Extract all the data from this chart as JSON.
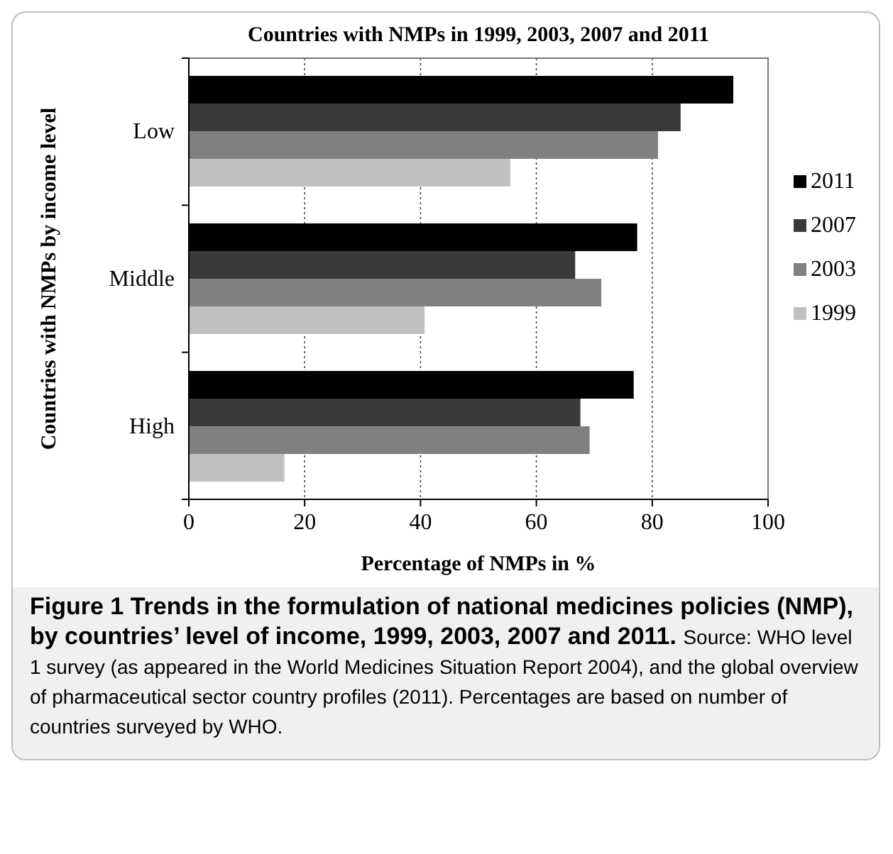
{
  "chart_data": {
    "type": "bar",
    "orientation": "horizontal",
    "title": "Countries with NMPs in 1999, 2003, 2007 and 2011",
    "xlabel": "Percentage of NMPs in %",
    "ylabel": "Countries with NMPs by income level",
    "categories": [
      "Low",
      "Middle",
      "High"
    ],
    "series": [
      {
        "name": "2011",
        "color": "#000000",
        "values": [
          94,
          77.4,
          76.8
        ]
      },
      {
        "name": "2007",
        "color": "#3a3a3a",
        "values": [
          84.9,
          66.7,
          67.6
        ]
      },
      {
        "name": "2003",
        "color": "#808080",
        "values": [
          81,
          71.2,
          69.2
        ]
      },
      {
        "name": "1999",
        "color": "#c0c0c0",
        "values": [
          55.5,
          40.7,
          16.5
        ]
      }
    ],
    "xlim": [
      0,
      100
    ],
    "xticks": [
      0,
      20,
      40,
      60,
      80,
      100
    ],
    "grid": "x",
    "legend": "right",
    "annotations": [
      "Figure 1 Trends in the formulation of national medicines policies (NMP), by countries’ level of income, 1999, 2003, 2007 and 2011.",
      "Source: WHO level 1 survey (as appeared in the World Medicines Situation Report 2004), and the global overview of pharmaceutical sector country profiles (2011). Percentages are based on number of countries surveyed by WHO."
    ]
  }
}
